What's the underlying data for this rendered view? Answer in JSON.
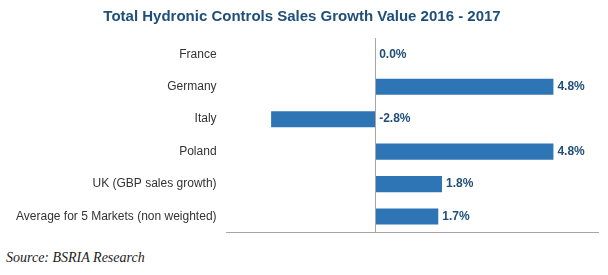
{
  "chart_data": {
    "type": "bar",
    "title": "Total Hydronic Controls Sales Growth Value 2016 - 2017",
    "categories": [
      "France",
      "Germany",
      "Italy",
      "Poland",
      "UK (GBP sales growth)",
      "Average for 5 Markets (non weighted)"
    ],
    "values": [
      0.0,
      4.8,
      -2.8,
      4.8,
      1.8,
      1.7
    ],
    "value_labels": [
      "0.0%",
      "4.8%",
      "-2.8%",
      "4.8%",
      "1.8%",
      "1.7%"
    ],
    "color": "#2E75B6",
    "orientation": "horizontal",
    "data_labels": true,
    "tick_labels": "y",
    "grid": false,
    "xlim": [
      -4,
      6
    ],
    "source": "Source: BSRIA Research"
  }
}
